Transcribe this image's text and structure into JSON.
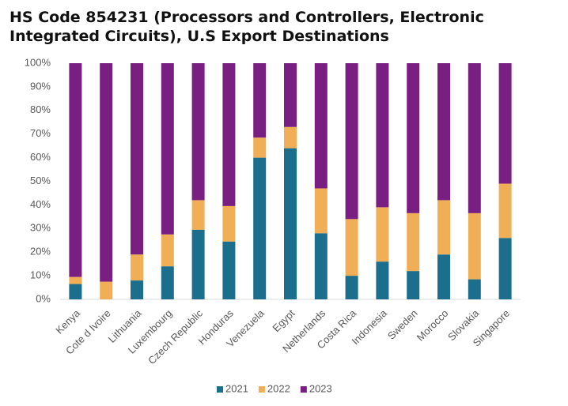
{
  "chart_data": {
    "type": "stacked_bar",
    "title": "HS Code 854231 (Processors and Controllers, Electronic Integrated Circuits), U.S Export Destinations",
    "categories": [
      "Kenya",
      "Cote d Ivoire",
      "Lithuania",
      "Luxembourg",
      "Czech Republic",
      "Honduras",
      "Venezuela",
      "Egypt",
      "Netherlands",
      "Costa Rica",
      "Indonesia",
      "Sweden",
      "Morocco",
      "Slovakia",
      "Singapore"
    ],
    "series": [
      {
        "name": "2021",
        "color": "#1c6f8c",
        "values": [
          6.5,
          0,
          8,
          14,
          29.5,
          24.5,
          60,
          64,
          28,
          10,
          16,
          12,
          19,
          8.5,
          26
        ]
      },
      {
        "name": "2022",
        "color": "#f0ae57",
        "values": [
          3,
          7.5,
          11,
          13.5,
          12.5,
          15,
          8.5,
          9,
          19,
          24,
          23,
          24.5,
          23,
          28,
          23
        ]
      },
      {
        "name": "2023",
        "color": "#7a1f82",
        "values": [
          90.5,
          92.5,
          81,
          72.5,
          58,
          60.5,
          31.5,
          27,
          53,
          66,
          61,
          63.5,
          58,
          63.5,
          51
        ]
      }
    ],
    "ylim": [
      0,
      100
    ],
    "yticks": [
      {
        "value": 0,
        "label": "0%"
      },
      {
        "value": 10,
        "label": "10%"
      },
      {
        "value": 20,
        "label": "20%"
      },
      {
        "value": 30,
        "label": "30%"
      },
      {
        "value": 40,
        "label": "40%"
      },
      {
        "value": 50,
        "label": "50%"
      },
      {
        "value": 60,
        "label": "60%"
      },
      {
        "value": 70,
        "label": "70%"
      },
      {
        "value": 80,
        "label": "80%"
      },
      {
        "value": 90,
        "label": "90%"
      },
      {
        "value": 100,
        "label": "100%"
      }
    ],
    "grid": false,
    "legend": "bottom"
  }
}
